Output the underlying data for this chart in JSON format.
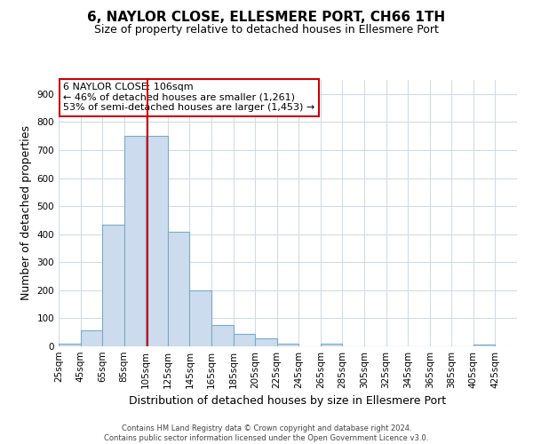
{
  "title": "6, NAYLOR CLOSE, ELLESMERE PORT, CH66 1TH",
  "subtitle": "Size of property relative to detached houses in Ellesmere Port",
  "xlabel": "Distribution of detached houses by size in Ellesmere Port",
  "ylabel": "Number of detached properties",
  "bar_fill_color": "#ccdcee",
  "bar_edge_color": "#7aaac8",
  "vline_color": "#cc0000",
  "vline_x": 106,
  "annotation_text": "6 NAYLOR CLOSE: 106sqm\n← 46% of detached houses are smaller (1,261)\n53% of semi-detached houses are larger (1,453) →",
  "annotation_box_color": "#ffffff",
  "annotation_box_edge_color": "#cc0000",
  "footer_text": "Contains HM Land Registry data © Crown copyright and database right 2024.\nContains public sector information licensed under the Open Government Licence v3.0.",
  "bin_edges": [
    25,
    45,
    65,
    85,
    105,
    125,
    145,
    165,
    185,
    205,
    225,
    245,
    265,
    285,
    305,
    325,
    345,
    365,
    385,
    405,
    425
  ],
  "bar_heights": [
    10,
    58,
    435,
    750,
    750,
    410,
    198,
    75,
    45,
    30,
    8,
    0,
    8,
    0,
    0,
    0,
    0,
    0,
    0,
    5
  ],
  "ylim": [
    0,
    950
  ],
  "yticks": [
    0,
    100,
    200,
    300,
    400,
    500,
    600,
    700,
    800,
    900
  ],
  "background_color": "#ffffff",
  "grid_color": "#d0dce8",
  "title_fontsize": 11,
  "subtitle_fontsize": 9,
  "axis_label_fontsize": 9,
  "tick_fontsize": 7.5,
  "footer_fontsize": 6,
  "annotation_fontsize": 8
}
